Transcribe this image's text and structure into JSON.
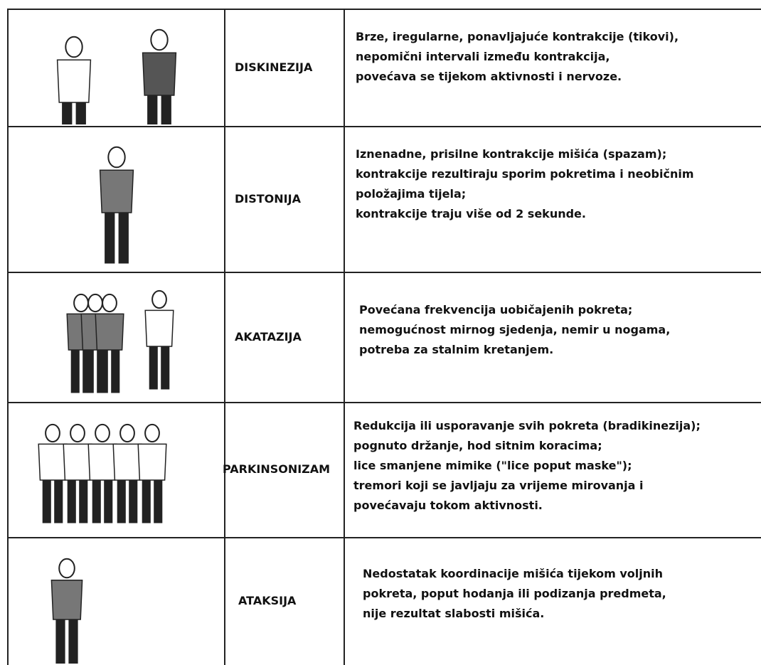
{
  "table": {
    "rows": [
      {
        "term": "DISKINEZIJA",
        "lines": [
          "Brze, iregularne, ponavljajuće kontrakcije (tikovi),",
          "nepomični intervali između kontrakcija,",
          "povećava se tijekom aktivnosti i nervoze."
        ]
      },
      {
        "term": "DISTONIJA",
        "lines": [
          "Iznenadne, prisilne kontrakcije mišića (spazam);",
          "kontrakcije rezultiraju sporim pokretima i neobičnim",
          "položajima tijela;",
          "kontrakcije traju više od 2 sekunde."
        ]
      },
      {
        "term": "AKATAZIJA",
        "lines": [
          "Povećana frekvencija uobičajenih pokreta;",
          "nemogućnost mirnog sjedenja, nemir u nogama,",
          "potreba za stalnim kretanjem."
        ]
      },
      {
        "term": "PARKINSONIZAM",
        "lines": [
          "Redukcija ili usporavanje svih pokreta (bradikinezija);",
          "pognuto držanje, hod sitnim koracima;",
          "lice smanjene mimike (\"lice poput maske\");",
          "tremori koji se javljaju za vrijeme mirovanja i",
          "povećavaju tokom aktivnosti."
        ]
      },
      {
        "term": "ATAKSIJA",
        "lines": [
          "Nedostatak koordinacije  mišića tijekom voljnih",
          "pokreta, poput hodanja ili podizanja predmeta,",
          "nije rezultat slabosti mišića."
        ]
      }
    ]
  }
}
